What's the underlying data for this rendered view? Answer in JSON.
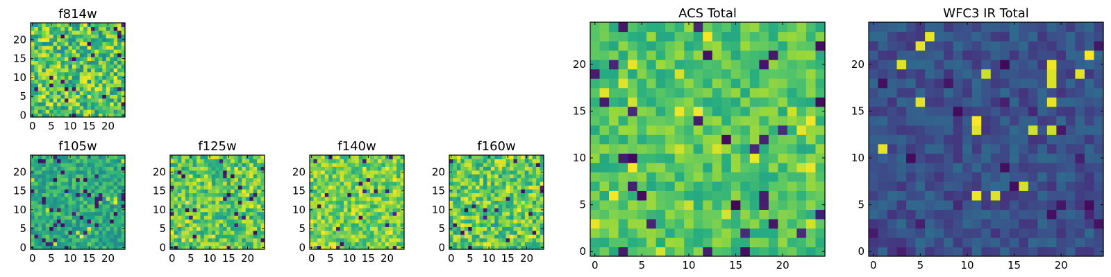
{
  "chart_data": [
    {
      "type": "heatmap",
      "title": "f814w",
      "grid": [
        25,
        25
      ],
      "colormap": "viridis",
      "x_ticks": [
        "0",
        "5",
        "10",
        "15",
        "20"
      ],
      "y_ticks": [
        "0",
        "5",
        "10",
        "15",
        "20"
      ],
      "xlim": [
        -0.5,
        24.5
      ],
      "ylim": [
        -0.5,
        24.5
      ],
      "texture": {
        "base": 0.72,
        "noise": 0.26,
        "dark_prob": 0.04,
        "bright_prob": 0.04,
        "seed": 11
      }
    },
    {
      "type": "heatmap",
      "title": "f105w",
      "grid": [
        25,
        25
      ],
      "colormap": "viridis",
      "x_ticks": [
        "0",
        "5",
        "10",
        "15",
        "20"
      ],
      "y_ticks": [
        "0",
        "5",
        "10",
        "15",
        "20"
      ],
      "xlim": [
        -0.5,
        24.5
      ],
      "ylim": [
        -0.5,
        24.5
      ],
      "texture": {
        "base": 0.62,
        "noise": 0.16,
        "dark_prob": 0.05,
        "bright_prob": 0.02,
        "seed": 23
      }
    },
    {
      "type": "heatmap",
      "title": "f125w",
      "grid": [
        25,
        25
      ],
      "colormap": "viridis",
      "x_ticks": [
        "0",
        "5",
        "10",
        "15",
        "20"
      ],
      "y_ticks": [
        "0",
        "5",
        "10",
        "15",
        "20"
      ],
      "xlim": [
        -0.5,
        24.5
      ],
      "ylim": [
        -0.5,
        24.5
      ],
      "texture": {
        "base": 0.74,
        "noise": 0.2,
        "dark_prob": 0.04,
        "bright_prob": 0.06,
        "seed": 37
      }
    },
    {
      "type": "heatmap",
      "title": "f140w",
      "grid": [
        25,
        25
      ],
      "colormap": "viridis",
      "x_ticks": [
        "0",
        "5",
        "10",
        "15",
        "20"
      ],
      "y_ticks": [
        "0",
        "5",
        "10",
        "15",
        "20"
      ],
      "xlim": [
        -0.5,
        24.5
      ],
      "ylim": [
        -0.5,
        24.5
      ],
      "texture": {
        "base": 0.78,
        "noise": 0.17,
        "dark_prob": 0.03,
        "bright_prob": 0.07,
        "seed": 41
      }
    },
    {
      "type": "heatmap",
      "title": "f160w",
      "grid": [
        25,
        25
      ],
      "colormap": "viridis",
      "x_ticks": [
        "0",
        "5",
        "10",
        "15",
        "20"
      ],
      "y_ticks": [
        "0",
        "5",
        "10",
        "15",
        "20"
      ],
      "xlim": [
        -0.5,
        24.5
      ],
      "ylim": [
        -0.5,
        24.5
      ],
      "texture": {
        "base": 0.75,
        "noise": 0.21,
        "dark_prob": 0.04,
        "bright_prob": 0.08,
        "seed": 53
      }
    },
    {
      "type": "heatmap",
      "title": "ACS Total",
      "grid": [
        25,
        25
      ],
      "colormap": "viridis",
      "x_ticks": [
        "0",
        "5",
        "10",
        "15",
        "20"
      ],
      "y_ticks": [
        "0",
        "5",
        "10",
        "15",
        "20"
      ],
      "xlim": [
        -0.5,
        24.5
      ],
      "ylim": [
        -0.5,
        24.5
      ],
      "texture": {
        "base": 0.73,
        "noise": 0.13,
        "dark_prob": 0.04,
        "bright_prob": 0.04,
        "seed": 67
      }
    },
    {
      "type": "heatmap",
      "title": "WFC3 IR Total",
      "grid": [
        25,
        25
      ],
      "colormap": "viridis",
      "x_ticks": [
        "0",
        "5",
        "10",
        "15",
        "20"
      ],
      "y_ticks": [
        "0",
        "5",
        "10",
        "15",
        "20"
      ],
      "xlim": [
        -0.5,
        24.5
      ],
      "ylim": [
        -0.5,
        24.5
      ],
      "texture": {
        "base": 0.25,
        "noise": 0.1,
        "dark_prob": 0.04,
        "bright_prob": 0.025,
        "seed": 79
      }
    }
  ]
}
